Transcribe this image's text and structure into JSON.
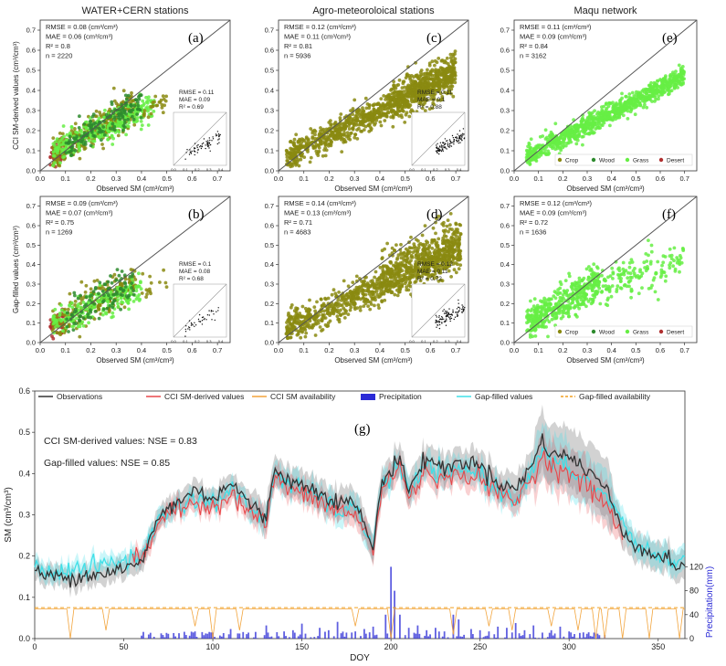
{
  "colors": {
    "observations": "#333333",
    "cci": "#e8474a",
    "cci_availability": "#f2a33a",
    "precip": "#2a2ad6",
    "gapfilled": "#3fe0e8",
    "gap_availability": "#f0a020",
    "crop": "#8a8a10",
    "wood": "#2e8b2e",
    "grass": "#66ee44",
    "desert": "#b03030"
  },
  "chart_data": [
    {
      "id": "a",
      "type": "scatter",
      "panel_label": "(a)",
      "title": "WATER+CERN stations",
      "xlabel": "Observed SM (cm³/cm³)",
      "ylabel": "CCI SM-derived values (cm³/cm³)",
      "xlim": [
        0,
        0.75
      ],
      "ylim": [
        0,
        0.75
      ],
      "xticks": [
        "0.0",
        "0.1",
        "0.2",
        "0.3",
        "0.4",
        "0.5",
        "0.6",
        "0.7"
      ],
      "yticks": [
        "0.0",
        "0.1",
        "0.2",
        "0.3",
        "0.4",
        "0.5",
        "0.6",
        "0.7"
      ],
      "stats": [
        "RMSE = 0.08 (cm³/cm³)",
        "MAE = 0.06 (cm³/cm³)",
        "R² = 0.8",
        "n = 2220"
      ],
      "inset_stats": [
        "RMSE = 0.11",
        "MAE = 0.09",
        "R² = 0.69"
      ],
      "inset_ticks": [
        "0.0",
        "0.1",
        "0.2",
        "0.3",
        "0.4"
      ],
      "clusters": [
        {
          "cls": "desert",
          "x": [
            0.04,
            0.1
          ],
          "a": 0.05,
          "b": 0.7,
          "sd": 0.03,
          "n": 70
        },
        {
          "cls": "crop",
          "x": [
            0.05,
            0.38
          ],
          "a": 0.04,
          "b": 0.75,
          "sd": 0.04,
          "n": 320
        },
        {
          "cls": "grass",
          "x": [
            0.05,
            0.45
          ],
          "a": 0.06,
          "b": 0.6,
          "sd": 0.035,
          "n": 300
        },
        {
          "cls": "wood",
          "x": [
            0.1,
            0.4
          ],
          "a": 0.05,
          "b": 0.72,
          "sd": 0.035,
          "n": 150
        },
        {
          "cls": "crop",
          "x": [
            0.4,
            0.5
          ],
          "a": 0.05,
          "b": 0.6,
          "sd": 0.03,
          "n": 25
        }
      ],
      "inset_cluster": {
        "x": [
          0.1,
          0.4
        ],
        "a": 0.02,
        "b": 0.6,
        "sd": 0.03,
        "n": 70
      }
    },
    {
      "id": "c",
      "type": "scatter",
      "panel_label": "(c)",
      "title": "Agro-meteoroloical stations",
      "xlabel": "Observed SM (cm³/cm³)",
      "ylabel": "",
      "xlim": [
        0,
        0.75
      ],
      "ylim": [
        0,
        0.75
      ],
      "xticks": [
        "0.0",
        "0.1",
        "0.2",
        "0.3",
        "0.4",
        "0.5",
        "0.6",
        "0.7"
      ],
      "yticks": [
        "0.0",
        "0.1",
        "0.2",
        "0.3",
        "0.4",
        "0.5",
        "0.6",
        "0.7"
      ],
      "stats": [
        "RMSE = 0.12 (cm³/cm³)",
        "MAE = 0.11 (cm³/cm³)",
        "R² = 0.81",
        "n = 5936"
      ],
      "inset_stats": [
        "RMSE = 0.11",
        "MAE = 0.1",
        "R² = 0.88"
      ],
      "inset_ticks": [
        "0.0",
        "0.1",
        "0.2",
        "0.3",
        "0.4"
      ],
      "clusters": [
        {
          "cls": "crop",
          "x": [
            0.03,
            0.7
          ],
          "a": 0.05,
          "b": 0.62,
          "sd": 0.035,
          "n": 900
        },
        {
          "cls": "crop",
          "x": [
            0.45,
            0.7
          ],
          "a": 0.1,
          "b": 0.55,
          "sd": 0.05,
          "n": 350
        }
      ],
      "inset_cluster": {
        "x": [
          0.2,
          0.45
        ],
        "a": 0.03,
        "b": 0.5,
        "sd": 0.025,
        "n": 110
      }
    },
    {
      "id": "e",
      "type": "scatter",
      "panel_label": "(e)",
      "title": "Maqu network",
      "xlabel": "Observed SM (cm³/cm³)",
      "ylabel": "",
      "xlim": [
        0,
        0.75
      ],
      "ylim": [
        0,
        0.75
      ],
      "xticks": [
        "0.0",
        "0.1",
        "0.2",
        "0.3",
        "0.4",
        "0.5",
        "0.6",
        "0.7"
      ],
      "yticks": [
        "0.0",
        "0.1",
        "0.2",
        "0.3",
        "0.4",
        "0.5",
        "0.6",
        "0.7"
      ],
      "stats": [
        "RMSE = 0.11 (cm³/cm³)",
        "MAE = 0.09 (cm³/cm³)",
        "R² = 0.84",
        "n = 3162"
      ],
      "legend": [
        "Crop",
        "Wood",
        "Grass",
        "Desert"
      ],
      "clusters": [
        {
          "cls": "grass",
          "x": [
            0.05,
            0.7
          ],
          "a": 0.04,
          "b": 0.62,
          "sd": 0.025,
          "n": 900
        }
      ]
    },
    {
      "id": "b",
      "type": "scatter",
      "panel_label": "(b)",
      "title": "",
      "xlabel": "Observed SM (cm³/cm³)",
      "ylabel": "Gap-filled values (cm³/cm³)",
      "xlim": [
        0,
        0.75
      ],
      "ylim": [
        0,
        0.75
      ],
      "xticks": [
        "0.0",
        "0.1",
        "0.2",
        "0.3",
        "0.4",
        "0.5",
        "0.6",
        "0.7"
      ],
      "yticks": [
        "0.0",
        "0.1",
        "0.2",
        "0.3",
        "0.4",
        "0.5",
        "0.6",
        "0.7"
      ],
      "stats": [
        "RMSE = 0.09 (cm³/cm³)",
        "MAE = 0.07 (cm³/cm³)",
        "R² = 0.75",
        "n = 1269"
      ],
      "inset_stats": [
        "RMSE = 0.1",
        "MAE = 0.08",
        "R² = 0.68"
      ],
      "inset_ticks": [
        "0.0",
        "0.1",
        "0.2",
        "0.3",
        "0.4"
      ],
      "clusters": [
        {
          "cls": "desert",
          "x": [
            0.04,
            0.1
          ],
          "a": 0.05,
          "b": 0.7,
          "sd": 0.03,
          "n": 50
        },
        {
          "cls": "crop",
          "x": [
            0.05,
            0.38
          ],
          "a": 0.05,
          "b": 0.72,
          "sd": 0.045,
          "n": 220
        },
        {
          "cls": "grass",
          "x": [
            0.05,
            0.4
          ],
          "a": 0.07,
          "b": 0.55,
          "sd": 0.04,
          "n": 200
        },
        {
          "cls": "wood",
          "x": [
            0.1,
            0.38
          ],
          "a": 0.05,
          "b": 0.72,
          "sd": 0.04,
          "n": 100
        },
        {
          "cls": "crop",
          "x": [
            0.4,
            0.5
          ],
          "a": 0.05,
          "b": 0.55,
          "sd": 0.03,
          "n": 15
        }
      ],
      "inset_cluster": {
        "x": [
          0.1,
          0.4
        ],
        "a": 0.02,
        "b": 0.55,
        "sd": 0.03,
        "n": 40
      }
    },
    {
      "id": "d",
      "type": "scatter",
      "panel_label": "(d)",
      "title": "",
      "xlabel": "Observed SM (cm³/cm³)",
      "ylabel": "",
      "xlim": [
        0,
        0.75
      ],
      "ylim": [
        0,
        0.75
      ],
      "xticks": [
        "0.0",
        "0.1",
        "0.2",
        "0.3",
        "0.4",
        "0.5",
        "0.6",
        "0.7"
      ],
      "yticks": [
        "0.0",
        "0.1",
        "0.2",
        "0.3",
        "0.4",
        "0.5",
        "0.6",
        "0.7"
      ],
      "stats": [
        "RMSE = 0.14 (cm³/cm³)",
        "MAE = 0.13 (cm³/cm³)",
        "R² = 0.71",
        "n = 4683"
      ],
      "inset_stats": [
        "RMSE = 0.12",
        "MAE = 0.11",
        "R² = 0.72"
      ],
      "inset_ticks": [
        "0.0",
        "0.1",
        "0.2",
        "0.3",
        "0.4"
      ],
      "clusters": [
        {
          "cls": "crop",
          "x": [
            0.03,
            0.72
          ],
          "a": 0.05,
          "b": 0.6,
          "sd": 0.04,
          "n": 850
        },
        {
          "cls": "crop",
          "x": [
            0.4,
            0.72
          ],
          "a": 0.12,
          "b": 0.55,
          "sd": 0.07,
          "n": 350
        }
      ],
      "inset_cluster": {
        "x": [
          0.2,
          0.45
        ],
        "a": 0.03,
        "b": 0.5,
        "sd": 0.03,
        "n": 100
      }
    },
    {
      "id": "f",
      "type": "scatter",
      "panel_label": "(f)",
      "title": "",
      "xlabel": "Observed SM (cm³/cm³)",
      "ylabel": "",
      "xlim": [
        0,
        0.75
      ],
      "ylim": [
        0,
        0.75
      ],
      "xticks": [
        "0.0",
        "0.1",
        "0.2",
        "0.3",
        "0.4",
        "0.5",
        "0.6",
        "0.7"
      ],
      "yticks": [
        "0.0",
        "0.1",
        "0.2",
        "0.3",
        "0.4",
        "0.5",
        "0.6",
        "0.7"
      ],
      "stats": [
        "RMSE = 0.12 (cm³/cm³)",
        "MAE = 0.09 (cm³/cm³)",
        "R² = 0.72",
        "n = 1636"
      ],
      "legend": [
        "Crop",
        "Wood",
        "Grass",
        "Desert"
      ],
      "clusters": [
        {
          "cls": "grass",
          "x": [
            0.05,
            0.35
          ],
          "a": 0.06,
          "b": 0.7,
          "sd": 0.045,
          "n": 450
        },
        {
          "cls": "grass",
          "x": [
            0.35,
            0.7
          ],
          "a": 0.12,
          "b": 0.45,
          "sd": 0.05,
          "n": 150
        }
      ]
    },
    {
      "id": "g",
      "type": "line",
      "panel_label": "(g)",
      "xlabel": "DOY",
      "ylabel": "SM (cm³/cm³)",
      "y2label": "Precipitation(mm)",
      "xlim": [
        0,
        365
      ],
      "ylim": [
        0,
        0.6
      ],
      "y2lim": [
        0,
        120
      ],
      "xticks": [
        "0",
        "50",
        "100",
        "150",
        "200",
        "250",
        "300",
        "350"
      ],
      "yticks": [
        "0.0",
        "0.1",
        "0.2",
        "0.3",
        "0.4",
        "0.5",
        "0.6"
      ],
      "y2ticks": [
        "0",
        "40",
        "80",
        "120"
      ],
      "legend": [
        "Observations",
        "CCI SM-derived values",
        "CCI SM availability",
        "Precipitation",
        "Gap-filled values",
        "Gap-filled availability"
      ],
      "nse": [
        "CCI SM-derived values: NSE = 0.83",
        "Gap-filled values: NSE = 0.85"
      ],
      "observations_anchors": [
        [
          0,
          0.16
        ],
        [
          10,
          0.15
        ],
        [
          20,
          0.15
        ],
        [
          40,
          0.16
        ],
        [
          60,
          0.18
        ],
        [
          62,
          0.21
        ],
        [
          70,
          0.3
        ],
        [
          80,
          0.33
        ],
        [
          90,
          0.36
        ],
        [
          100,
          0.34
        ],
        [
          110,
          0.38
        ],
        [
          120,
          0.33
        ],
        [
          130,
          0.29
        ],
        [
          135,
          0.42
        ],
        [
          140,
          0.39
        ],
        [
          150,
          0.37
        ],
        [
          160,
          0.36
        ],
        [
          170,
          0.33
        ],
        [
          180,
          0.33
        ],
        [
          190,
          0.22
        ],
        [
          195,
          0.38
        ],
        [
          205,
          0.44
        ],
        [
          210,
          0.36
        ],
        [
          220,
          0.44
        ],
        [
          230,
          0.41
        ],
        [
          240,
          0.43
        ],
        [
          250,
          0.42
        ],
        [
          260,
          0.38
        ],
        [
          270,
          0.36
        ],
        [
          280,
          0.43
        ],
        [
          285,
          0.48
        ],
        [
          290,
          0.45
        ],
        [
          300,
          0.44
        ],
        [
          310,
          0.41
        ],
        [
          320,
          0.37
        ],
        [
          330,
          0.26
        ],
        [
          340,
          0.22
        ],
        [
          350,
          0.2
        ],
        [
          360,
          0.18
        ],
        [
          365,
          0.18
        ]
      ],
      "cci_anchors": [
        [
          55,
          0.19
        ],
        [
          62,
          0.2
        ],
        [
          70,
          0.29
        ],
        [
          80,
          0.31
        ],
        [
          90,
          0.33
        ],
        [
          100,
          0.32
        ],
        [
          110,
          0.35
        ],
        [
          120,
          0.31
        ],
        [
          130,
          0.28
        ],
        [
          135,
          0.4
        ],
        [
          140,
          0.37
        ],
        [
          150,
          0.35
        ],
        [
          160,
          0.33
        ],
        [
          170,
          0.31
        ],
        [
          180,
          0.3
        ],
        [
          190,
          0.22
        ],
        [
          195,
          0.36
        ],
        [
          205,
          0.42
        ],
        [
          210,
          0.34
        ],
        [
          220,
          0.41
        ],
        [
          230,
          0.38
        ],
        [
          240,
          0.4
        ],
        [
          250,
          0.39
        ],
        [
          260,
          0.35
        ],
        [
          270,
          0.33
        ],
        [
          280,
          0.4
        ],
        [
          285,
          0.44
        ],
        [
          290,
          0.42
        ],
        [
          300,
          0.4
        ],
        [
          310,
          0.37
        ],
        [
          320,
          0.33
        ],
        [
          330,
          0.25
        ]
      ],
      "gap_anchors": [
        [
          0,
          0.17
        ],
        [
          10,
          0.16
        ],
        [
          20,
          0.17
        ],
        [
          30,
          0.17
        ],
        [
          40,
          0.18
        ],
        [
          50,
          0.19
        ],
        [
          60,
          0.2
        ],
        [
          70,
          0.29
        ],
        [
          80,
          0.32
        ],
        [
          90,
          0.34
        ],
        [
          100,
          0.33
        ],
        [
          110,
          0.36
        ],
        [
          120,
          0.32
        ],
        [
          130,
          0.28
        ],
        [
          135,
          0.41
        ],
        [
          140,
          0.38
        ],
        [
          150,
          0.36
        ],
        [
          160,
          0.34
        ],
        [
          170,
          0.31
        ],
        [
          180,
          0.31
        ],
        [
          190,
          0.23
        ],
        [
          195,
          0.37
        ],
        [
          205,
          0.42
        ],
        [
          210,
          0.35
        ],
        [
          220,
          0.42
        ],
        [
          230,
          0.39
        ],
        [
          240,
          0.41
        ],
        [
          250,
          0.4
        ],
        [
          260,
          0.36
        ],
        [
          270,
          0.34
        ],
        [
          280,
          0.41
        ],
        [
          285,
          0.45
        ],
        [
          290,
          0.43
        ],
        [
          300,
          0.41
        ],
        [
          310,
          0.38
        ],
        [
          320,
          0.35
        ],
        [
          330,
          0.28
        ],
        [
          340,
          0.22
        ],
        [
          350,
          0.2
        ],
        [
          360,
          0.19
        ],
        [
          365,
          0.19
        ]
      ],
      "availability_level": 0.075,
      "precip_events": [
        [
          200,
          120
        ],
        [
          202,
          80
        ],
        [
          197,
          40
        ],
        [
          235,
          40
        ],
        [
          238,
          32
        ],
        [
          170,
          28
        ],
        [
          150,
          25
        ],
        [
          130,
          22
        ],
        [
          270,
          26
        ],
        [
          280,
          22
        ],
        [
          260,
          20
        ],
        [
          110,
          16
        ],
        [
          90,
          12
        ],
        [
          145,
          14
        ],
        [
          160,
          18
        ],
        [
          215,
          22
        ],
        [
          225,
          18
        ],
        [
          250,
          14
        ],
        [
          300,
          12
        ],
        [
          75,
          8
        ],
        [
          60,
          5
        ],
        [
          120,
          10
        ],
        [
          180,
          12
        ],
        [
          190,
          20
        ],
        [
          205,
          40
        ],
        [
          210,
          18
        ],
        [
          245,
          16
        ],
        [
          290,
          14
        ],
        [
          295,
          20
        ],
        [
          310,
          8
        ],
        [
          320,
          6
        ],
        [
          100,
          10
        ],
        [
          85,
          6
        ],
        [
          140,
          12
        ],
        [
          165,
          14
        ],
        [
          175,
          10
        ],
        [
          185,
          16
        ],
        [
          220,
          14
        ],
        [
          230,
          12
        ],
        [
          255,
          12
        ],
        [
          265,
          18
        ],
        [
          275,
          14
        ],
        [
          285,
          10
        ]
      ],
      "cci_drops": [
        [
          20,
          0.0
        ],
        [
          40,
          0.02
        ],
        [
          90,
          0.03
        ],
        [
          100,
          0.0
        ],
        [
          115,
          0.02
        ],
        [
          180,
          0.03
        ],
        [
          200,
          0.0
        ],
        [
          235,
          0.01
        ],
        [
          255,
          0.03
        ],
        [
          268,
          0.02
        ],
        [
          290,
          0.03
        ],
        [
          305,
          0.02
        ],
        [
          315,
          0.0
        ],
        [
          320,
          0.0
        ],
        [
          330,
          0.0
        ],
        [
          345,
          0.0
        ],
        [
          362,
          0.0
        ]
      ]
    }
  ]
}
